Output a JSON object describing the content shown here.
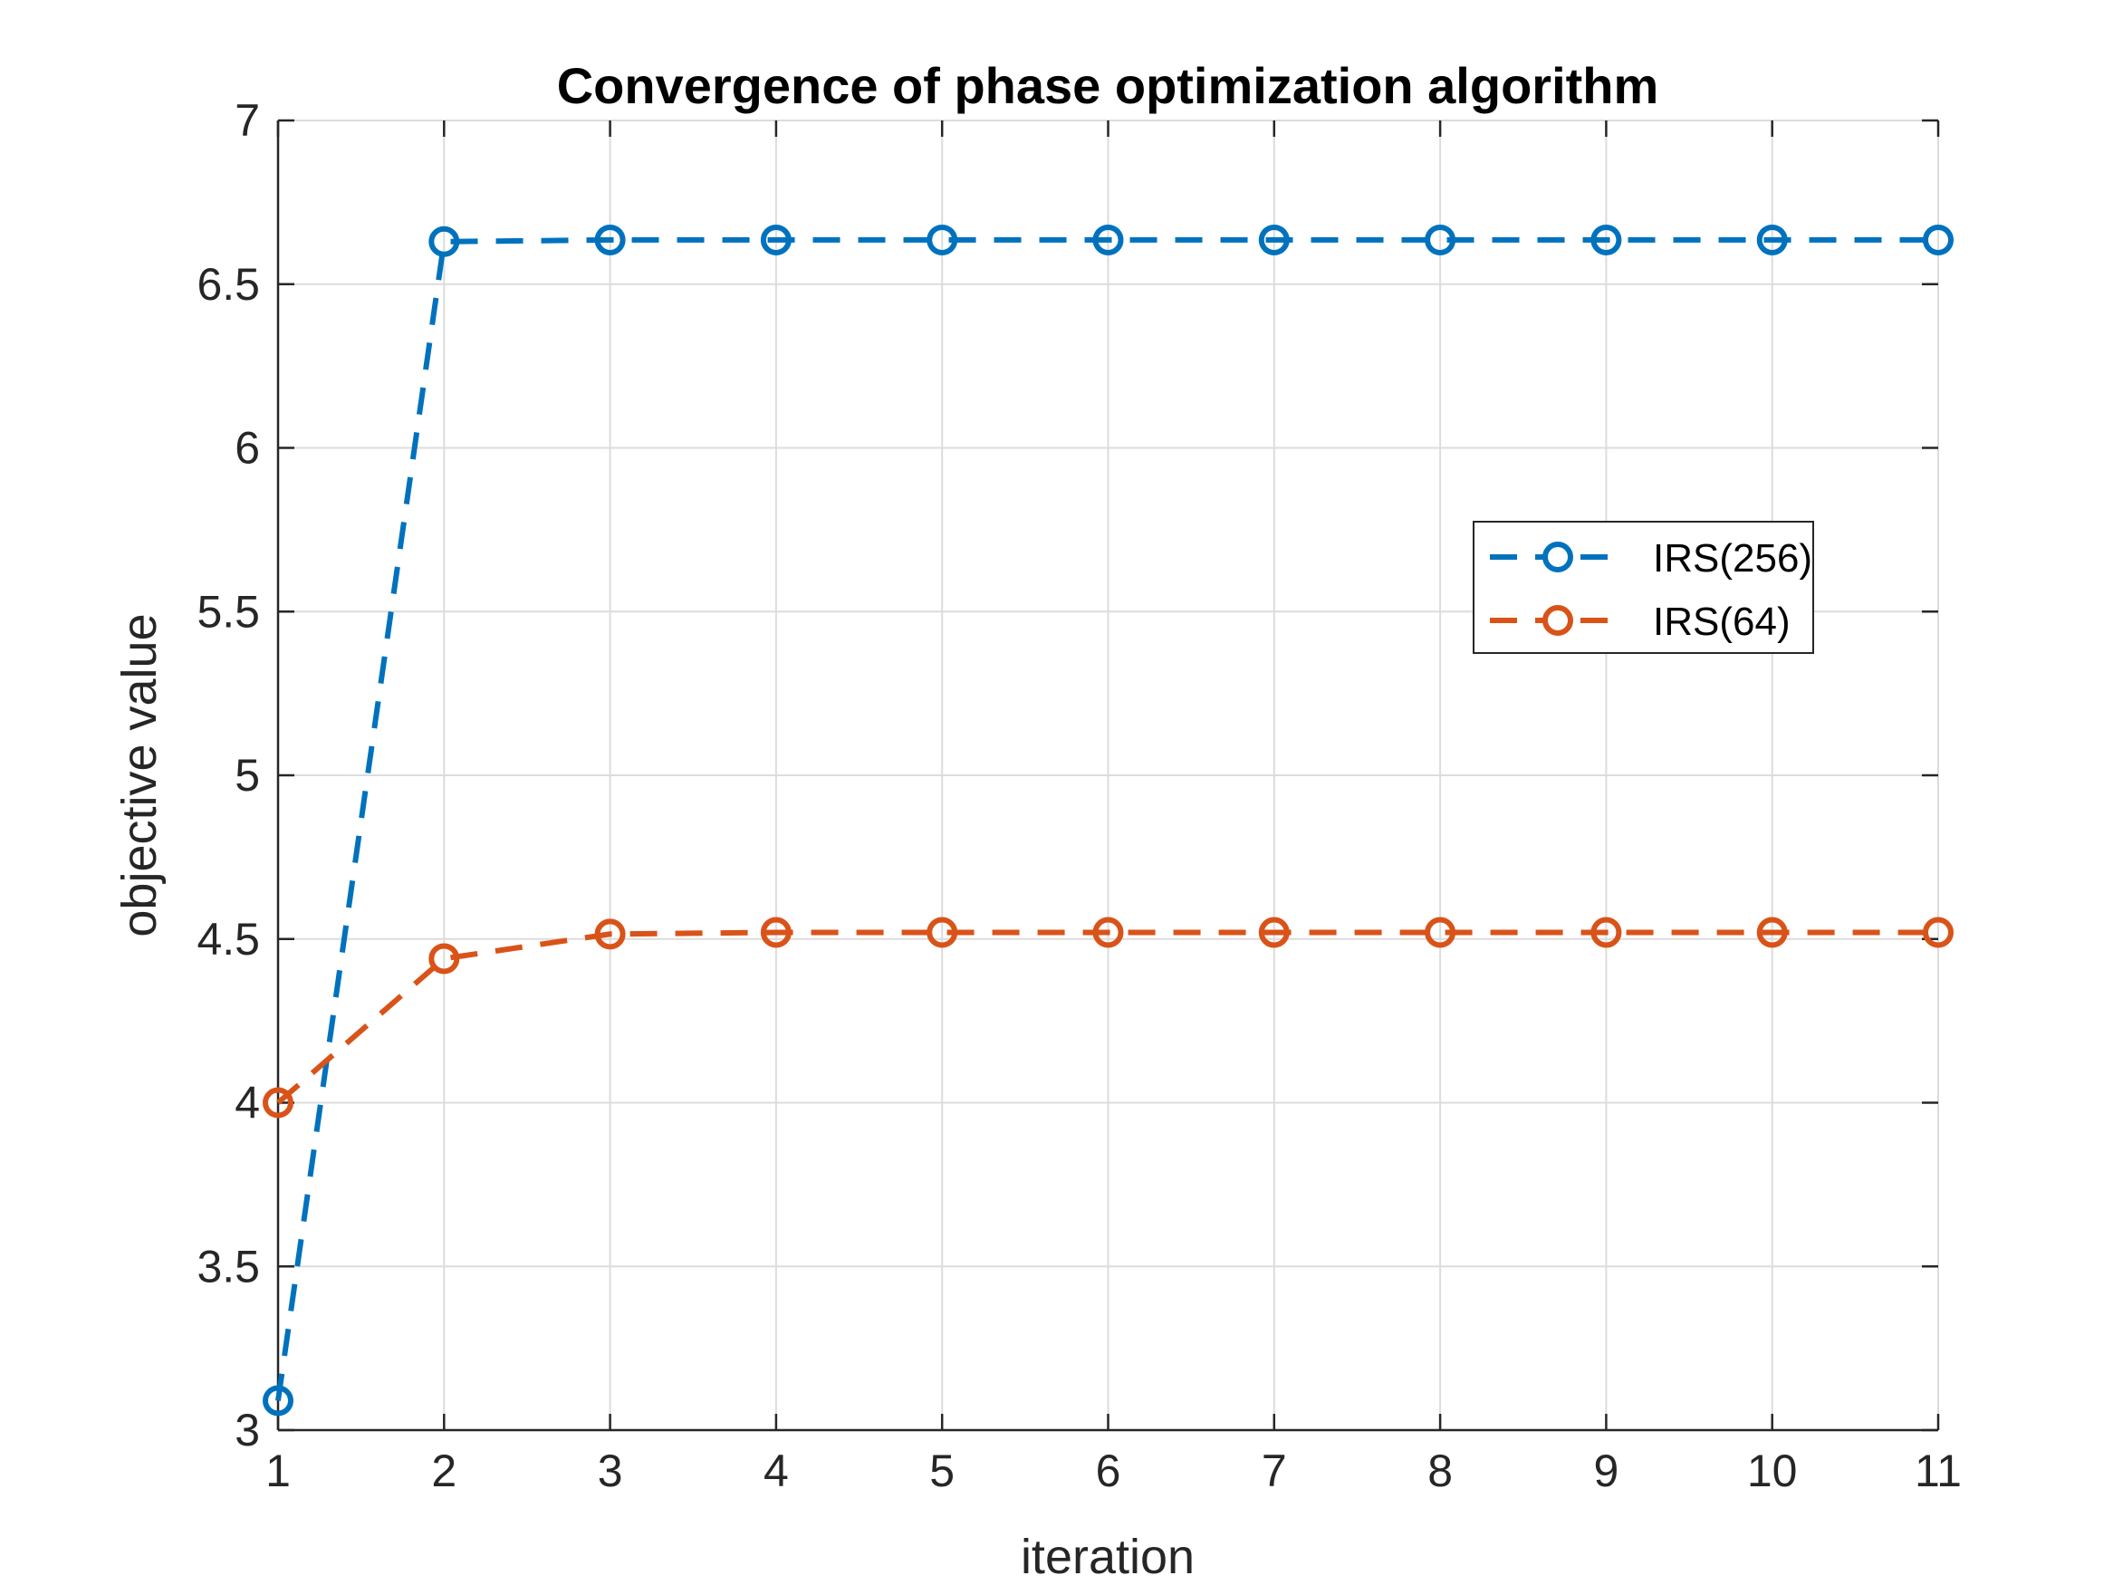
{
  "chart_data": {
    "type": "line",
    "title": "Convergence of phase optimization algorithm",
    "xlabel": "iteration",
    "ylabel": "objective value",
    "xlim": [
      1,
      11
    ],
    "ylim": [
      3,
      7
    ],
    "x_ticks": [
      "1",
      "2",
      "3",
      "4",
      "5",
      "6",
      "7",
      "8",
      "9",
      "10",
      "11"
    ],
    "y_ticks": [
      "3",
      "3.5",
      "4",
      "4.5",
      "5",
      "5.5",
      "6",
      "6.5",
      "7"
    ],
    "grid": true,
    "legend_position": "right",
    "x": [
      1,
      2,
      3,
      4,
      5,
      6,
      7,
      8,
      9,
      10,
      11
    ],
    "series": [
      {
        "name": "IRS(256)",
        "color": "#0072BD",
        "line_style": "dashed",
        "marker": "circle",
        "values": [
          3.09,
          6.63,
          6.635,
          6.635,
          6.635,
          6.635,
          6.635,
          6.635,
          6.635,
          6.635,
          6.635
        ]
      },
      {
        "name": "IRS(64)",
        "color": "#D95319",
        "line_style": "dashed",
        "marker": "circle",
        "values": [
          4.0,
          4.44,
          4.515,
          4.52,
          4.52,
          4.52,
          4.52,
          4.52,
          4.52,
          4.52,
          4.52
        ]
      }
    ]
  }
}
